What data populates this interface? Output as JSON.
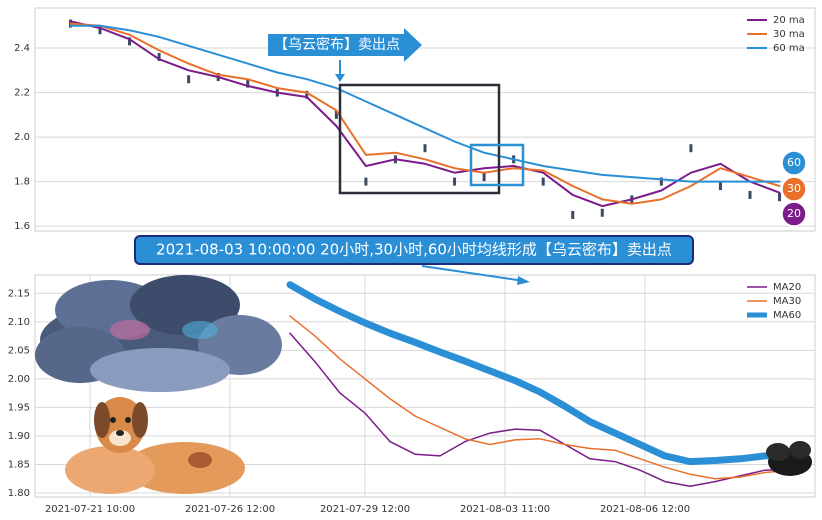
{
  "chart_data": [
    {
      "type": "line",
      "x": [
        0,
        1,
        2,
        3,
        4,
        5,
        6,
        7,
        8,
        9,
        10,
        11,
        12,
        13,
        14,
        15,
        16,
        17,
        18,
        19,
        20,
        21,
        22,
        23,
        24
      ],
      "xlim": [
        -1.2,
        25.2
      ],
      "ylim": [
        1.578,
        2.58
      ],
      "yticks": [
        1.6,
        1.8,
        {
          "value": 2,
          "label": "2.0"
        },
        2.2,
        2.4
      ],
      "grid": true,
      "legend": "upper right",
      "price": {
        "color": "#3a4a66",
        "values": [
          2.51,
          2.48,
          2.43,
          2.36,
          2.26,
          2.27,
          2.24,
          2.2,
          2.19,
          2.1,
          1.8,
          1.9,
          1.95,
          1.8,
          1.82,
          1.9,
          1.8,
          1.65,
          1.66,
          1.72,
          1.8,
          1.95,
          1.78,
          1.74,
          1.73
        ]
      },
      "series": [
        {
          "name": "20 ma",
          "color": "#7b1c8a",
          "width": 2,
          "values": [
            2.52,
            2.49,
            2.44,
            2.35,
            2.3,
            2.27,
            2.23,
            2.2,
            2.18,
            2.05,
            1.87,
            1.9,
            1.88,
            1.84,
            1.86,
            1.87,
            1.84,
            1.74,
            1.69,
            1.72,
            1.76,
            1.84,
            1.88,
            1.8,
            1.75
          ]
        },
        {
          "name": "30 ma",
          "color": "#e8702a",
          "width": 2,
          "values": [
            2.51,
            2.5,
            2.46,
            2.39,
            2.33,
            2.28,
            2.26,
            2.22,
            2.2,
            2.12,
            1.92,
            1.93,
            1.9,
            1.86,
            1.84,
            1.86,
            1.85,
            1.78,
            1.72,
            1.7,
            1.72,
            1.78,
            1.86,
            1.82,
            1.78
          ]
        },
        {
          "name": "60 ma",
          "color": "#2b8fd6",
          "width": 2,
          "values": [
            2.5,
            2.5,
            2.48,
            2.45,
            2.41,
            2.37,
            2.33,
            2.29,
            2.26,
            2.22,
            2.16,
            2.1,
            2.04,
            1.98,
            1.93,
            1.9,
            1.87,
            1.85,
            1.83,
            1.82,
            1.81,
            1.8,
            1.8,
            1.8,
            1.8
          ]
        }
      ],
      "annotation": "【乌云密布】卖出点",
      "badges": [
        "60",
        "30",
        "20"
      ]
    },
    {
      "type": "line",
      "x": [
        51,
        56,
        61,
        66,
        71,
        76,
        81,
        86,
        91,
        96,
        101,
        106,
        111,
        116,
        121,
        126,
        131,
        136,
        141,
        146,
        151
      ],
      "xlim": [
        0,
        156
      ],
      "ylim": [
        1.793,
        2.182
      ],
      "xticks": [
        {
          "value": 11,
          "label": "2021-07-21 10:00"
        },
        {
          "value": 39,
          "label": "2021-07-26 12:00"
        },
        {
          "value": 66,
          "label": "2021-07-29 12:00"
        },
        {
          "value": 94,
          "label": "2021-08-03 11:00"
        },
        {
          "value": 122,
          "label": "2021-08-06 12:00"
        }
      ],
      "yticks": [
        {
          "value": 1.8,
          "label": "1.80"
        },
        {
          "value": 1.85,
          "label": "1.85"
        },
        {
          "value": 1.9,
          "label": "1.90"
        },
        {
          "value": 1.95,
          "label": "1.95"
        },
        {
          "value": 2,
          "label": "2.00"
        },
        {
          "value": 2.05,
          "label": "2.05"
        },
        {
          "value": 2.1,
          "label": "2.10"
        },
        {
          "value": 2.15,
          "label": "2.15"
        }
      ],
      "grid": true,
      "legend": "upper right",
      "series": [
        {
          "name": "MA20",
          "color": "#7b1c8a",
          "width": 1.5,
          "values": [
            2.08,
            2.03,
            1.975,
            1.94,
            1.89,
            1.868,
            1.865,
            1.89,
            1.905,
            1.912,
            1.91,
            1.885,
            1.86,
            1.855,
            1.84,
            1.82,
            1.812,
            1.82,
            1.83,
            1.84,
            1.842
          ]
        },
        {
          "name": "MA30",
          "color": "#e8702a",
          "width": 1.5,
          "values": [
            2.11,
            2.075,
            2.035,
            2.0,
            1.965,
            1.935,
            1.915,
            1.895,
            1.885,
            1.893,
            1.895,
            1.885,
            1.878,
            1.875,
            1.86,
            1.845,
            1.833,
            1.825,
            1.828,
            1.836,
            1.84
          ]
        },
        {
          "name": "MA60",
          "color": "#2b8fd6",
          "width": 7,
          "values": [
            2.165,
            2.14,
            2.118,
            2.098,
            2.08,
            2.064,
            2.047,
            2.031,
            2.014,
            1.997,
            1.977,
            1.952,
            1.925,
            1.905,
            1.885,
            1.865,
            1.855,
            1.857,
            1.86,
            1.865,
            1.868
          ]
        }
      ],
      "annotation": "2021-08-03 10:00:00 20小时,30小时,60小时均线形成【乌云密布】卖出点"
    }
  ]
}
